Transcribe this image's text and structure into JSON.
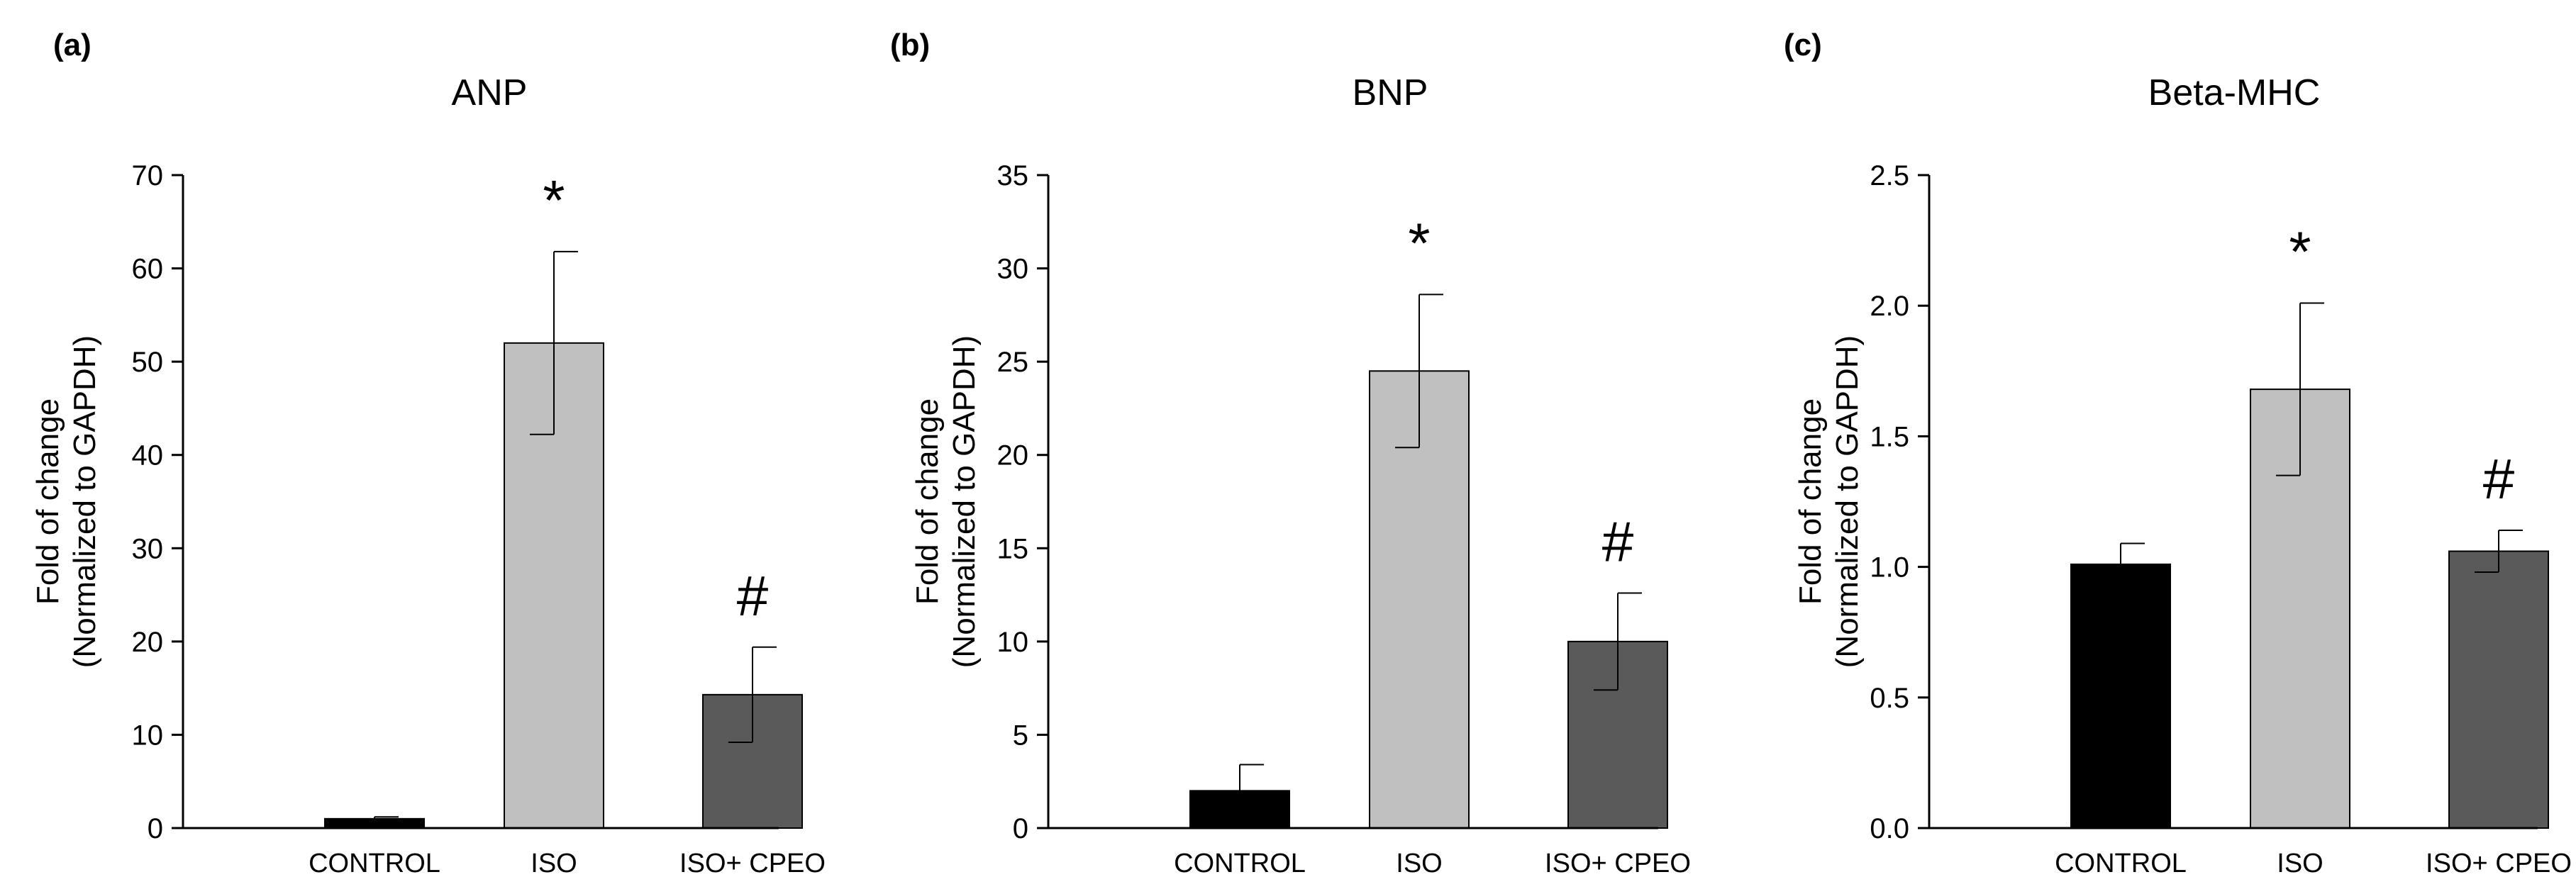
{
  "colors": {
    "control": "#000000",
    "iso": "#c0c0c0",
    "iso_cpeo": "#5a5a5a",
    "axis": "#000000",
    "background": "#ffffff"
  },
  "chart_data": [
    {
      "type": "bar",
      "panel": "(a)",
      "title": "ANP",
      "ylabel_line1": "Fold of change",
      "ylabel_line2": "(Normalized to GAPDH)",
      "xlabel": "",
      "ylim": [
        0,
        70
      ],
      "yticks": [
        0,
        10,
        20,
        30,
        40,
        50,
        60,
        70
      ],
      "ytick_labels": [
        "0",
        "10",
        "20",
        "30",
        "40",
        "50",
        "60",
        "70"
      ],
      "categories": [
        "CONTROL",
        "ISO",
        "ISO+ CPEO"
      ],
      "values": [
        1.0,
        52.0,
        14.3
      ],
      "errors": [
        0.2,
        9.8,
        5.1
      ],
      "annotations": [
        "",
        "*",
        "#"
      ]
    },
    {
      "type": "bar",
      "panel": "(b)",
      "title": "BNP",
      "ylabel_line1": "Fold of change",
      "ylabel_line2": "(Normalized to GAPDH)",
      "xlabel": "",
      "ylim": [
        0,
        35
      ],
      "yticks": [
        0,
        5,
        10,
        15,
        20,
        25,
        30,
        35
      ],
      "ytick_labels": [
        "0",
        "5",
        "10",
        "15",
        "20",
        "25",
        "30",
        "35"
      ],
      "categories": [
        "CONTROL",
        "ISO",
        "ISO+ CPEO"
      ],
      "values": [
        2.0,
        24.5,
        10.0
      ],
      "errors": [
        1.4,
        4.1,
        2.6
      ],
      "annotations": [
        "",
        "*",
        "#"
      ]
    },
    {
      "type": "bar",
      "panel": "(c)",
      "title": "Beta-MHC",
      "ylabel_line1": "Fold of change",
      "ylabel_line2": "(Normalized to GAPDH)",
      "xlabel": "",
      "ylim": [
        0,
        2.5
      ],
      "yticks": [
        0,
        0.5,
        1.0,
        1.5,
        2.0,
        2.5
      ],
      "ytick_labels": [
        "0.0",
        "0.5",
        "1.0",
        "1.5",
        "2.0",
        "2.5"
      ],
      "categories": [
        "CONTROL",
        "ISO",
        "ISO+ CPEO"
      ],
      "values": [
        1.01,
        1.68,
        1.06
      ],
      "errors": [
        0.08,
        0.33,
        0.08
      ],
      "annotations": [
        "",
        "*",
        "#"
      ]
    }
  ]
}
